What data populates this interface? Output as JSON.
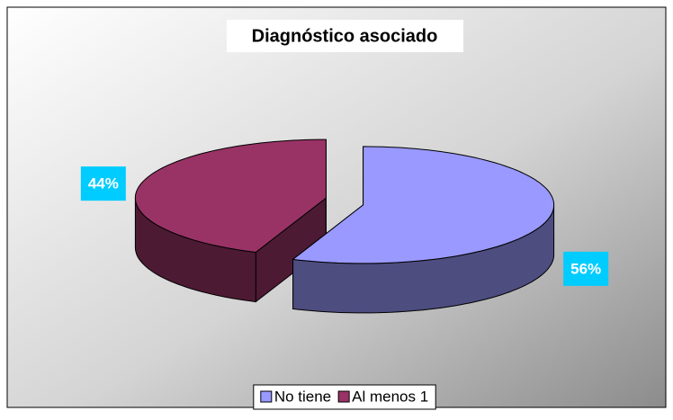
{
  "chart_data": {
    "type": "pie3d",
    "title": "Diagnóstico asociado",
    "categories": [
      "No tiene",
      "Al menos 1"
    ],
    "values": [
      56,
      44
    ],
    "value_labels": [
      "56%",
      "44%"
    ],
    "colors": [
      "#9999ff",
      "#993366"
    ],
    "label_background": "#00ccff",
    "legend": "bottom"
  }
}
